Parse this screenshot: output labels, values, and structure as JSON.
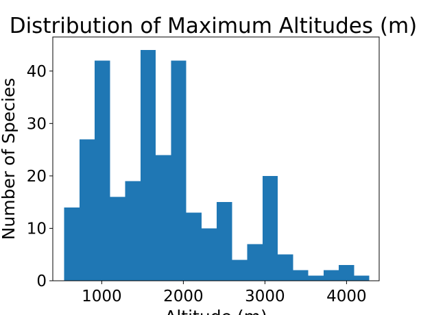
{
  "chart_data": {
    "type": "bar",
    "title": "Distribution of Maximum Altitudes (m)",
    "xlabel": "Altitude (m)",
    "ylabel": "Number of Species",
    "xlim": [
      400,
      4400
    ],
    "ylim": [
      0,
      46.5
    ],
    "xticks": [
      1000,
      2000,
      3000,
      4000
    ],
    "yticks": [
      0,
      10,
      20,
      30,
      40
    ],
    "bin_edges": [
      540,
      727,
      914,
      1101,
      1288,
      1475,
      1662,
      1849,
      2036,
      2223,
      2410,
      2597,
      2784,
      2971,
      3158,
      3345,
      3532,
      3719,
      3906,
      4093,
      4280
    ],
    "values": [
      14,
      27,
      42,
      16,
      19,
      44,
      24,
      42,
      13,
      10,
      15,
      4,
      7,
      20,
      5,
      2,
      1,
      2,
      3,
      1
    ],
    "bar_color": "#1f77b4",
    "grid": false,
    "legend": false
  }
}
